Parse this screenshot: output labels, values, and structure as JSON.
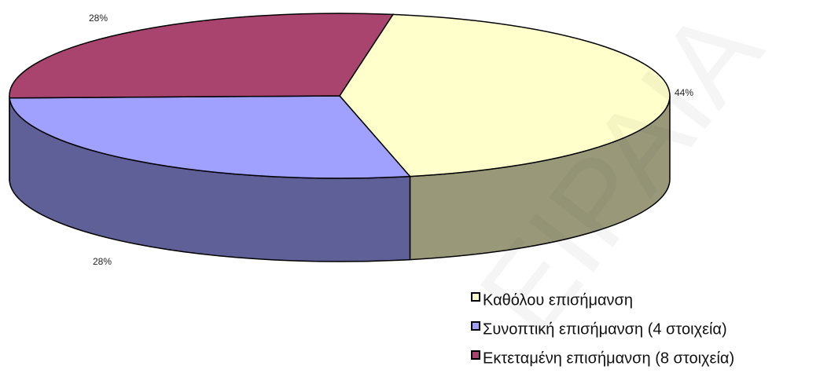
{
  "chart_data": {
    "type": "pie",
    "categories": [
      "Καθόλου επισήμανση",
      "Συνοπτική επισήμανση (4 στοιχεία)",
      "Εκτεταμένη επισήμανση (8 στοιχεία)"
    ],
    "values": [
      44,
      28,
      28
    ],
    "value_labels": [
      "44%",
      "28%",
      "28%"
    ],
    "colors": [
      "#ffffcc",
      "#a0a0ff",
      "#a8446e"
    ],
    "legend": "bottom-right",
    "watermark": "ΕΙΡΑΙΑ"
  }
}
